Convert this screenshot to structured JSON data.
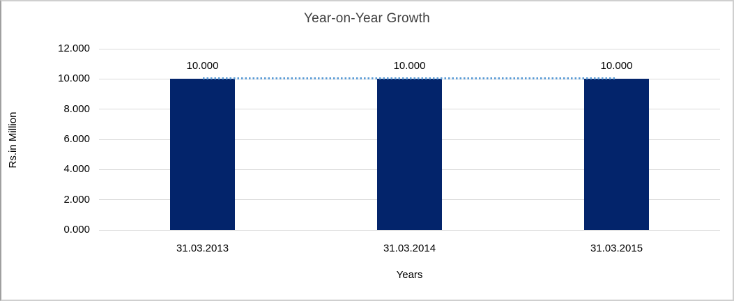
{
  "chart_data": {
    "type": "bar",
    "title": "Year-on-Year Growth",
    "xlabel": "Years",
    "ylabel": "Rs.in Million",
    "categories": [
      "31.03.2013",
      "31.03.2014",
      "31.03.2015"
    ],
    "values": [
      10000,
      10000,
      10000
    ],
    "data_labels": [
      "10.000",
      "10.000",
      "10.000"
    ],
    "ylim": [
      0,
      12000
    ],
    "ytick_values": [
      0,
      2000,
      4000,
      6000,
      8000,
      10000,
      12000
    ],
    "ytick_labels": [
      "0.000",
      "2.000",
      "4.000",
      "6.000",
      "8.000",
      "10.000",
      "12.000"
    ],
    "grid": true,
    "legend": false,
    "trendline": {
      "style": "dotted",
      "value": 10000,
      "from_category_index": 0,
      "to_category_index": 2
    },
    "colors": {
      "bar": "#03246b",
      "trendline": "#5b9bd5",
      "gridline": "#d9d9d9",
      "title_text": "#404040",
      "axis_text": "#000000"
    }
  }
}
